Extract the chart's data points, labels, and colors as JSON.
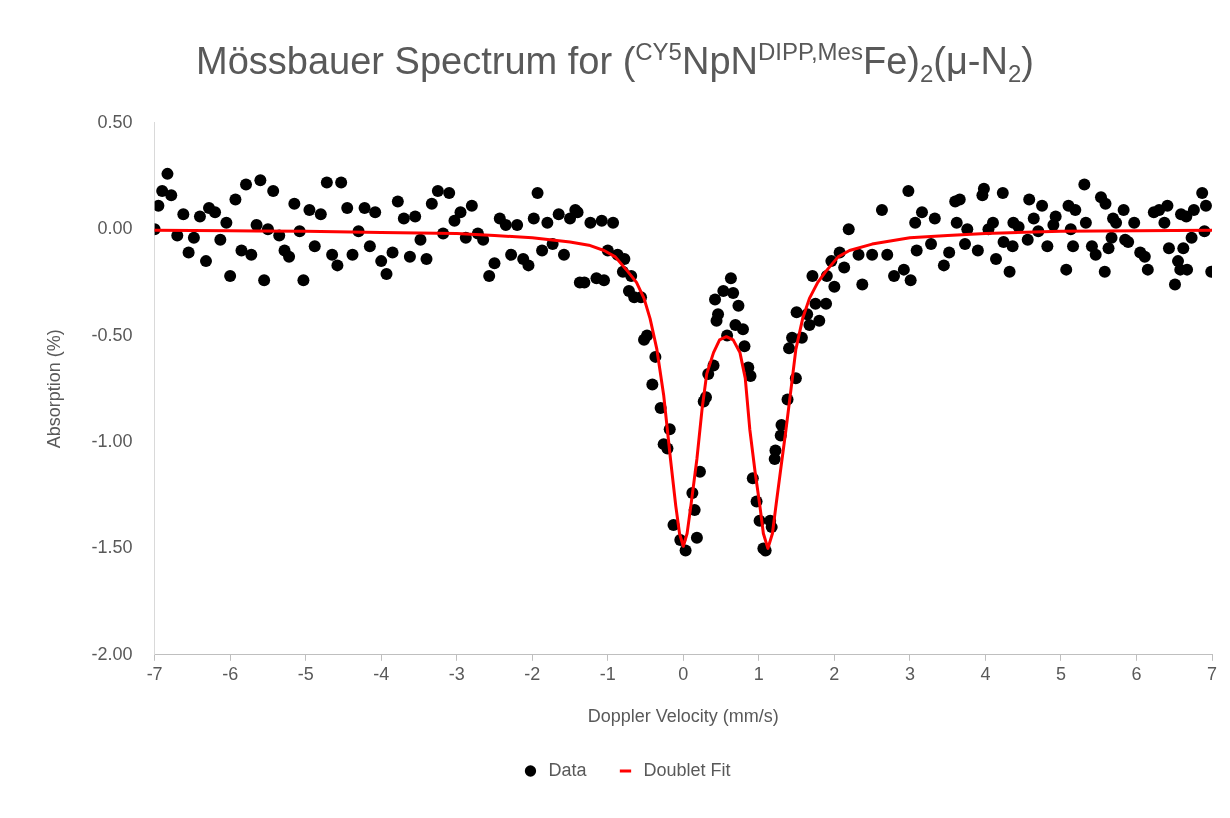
{
  "chart_data": {
    "type": "scatter",
    "title": "Mössbauer Spectrum for ($^{CY5}$NpN$^{DIPP,Mes}$Fe)$_{2}$(μ-N$_{2}$)",
    "xlabel": "Doppler Velocity (mm/s)",
    "ylabel": "Absorption (%)",
    "xlim": [
      -7,
      7
    ],
    "xticks": [
      -7,
      -6,
      -5,
      -4,
      -3,
      -2,
      -1,
      0,
      1,
      2,
      3,
      4,
      5,
      6,
      7
    ],
    "ylim": [
      -2,
      0.5
    ],
    "yticks": [
      {
        "value": -2,
        "label": "-2.00"
      },
      {
        "value": -1.5,
        "label": "-1.50"
      },
      {
        "value": -1,
        "label": "-1.00"
      },
      {
        "value": -0.5,
        "label": "-0.50"
      },
      {
        "value": 0,
        "label": "0.00"
      },
      {
        "value": 0.5,
        "label": "0.50"
      }
    ],
    "grid": false,
    "legend": "bottom",
    "marker": "circle",
    "series": [
      {
        "name": "Data",
        "color": "#000000",
        "x": [
          -7.0,
          -6.95,
          -6.9,
          -6.83,
          -6.78,
          -6.7,
          -6.62,
          -6.55,
          -6.48,
          -6.4,
          -6.32,
          -6.28,
          -6.2,
          -6.13,
          -6.05,
          -6.0,
          -5.93,
          -5.85,
          -5.79,
          -5.72,
          -5.65,
          -5.6,
          -5.55,
          -5.5,
          -5.43,
          -5.35,
          -5.28,
          -5.22,
          -5.15,
          -5.08,
          -5.03,
          -4.95,
          -4.88,
          -4.8,
          -4.72,
          -4.65,
          -4.58,
          -4.53,
          -4.45,
          -4.38,
          -4.3,
          -4.22,
          -4.15,
          -4.08,
          -4.0,
          -3.93,
          -3.85,
          -3.78,
          -3.7,
          -3.62,
          -3.55,
          -3.48,
          -3.4,
          -3.33,
          -3.25,
          -3.18,
          -3.1,
          -3.03,
          -2.95,
          -2.88,
          -2.8,
          -2.72,
          -2.65,
          -2.57,
          -2.5,
          -2.43,
          -2.35,
          -2.28,
          -2.2,
          -2.12,
          -2.05,
          -1.98,
          -1.93,
          -1.87,
          -1.8,
          -1.73,
          -1.65,
          -1.58,
          -1.5,
          -1.43,
          -1.4,
          -1.37,
          -1.31,
          -1.23,
          -1.15,
          -1.08,
          -1.05,
          -1.0,
          -0.93,
          -0.87,
          -0.8,
          -0.78,
          -0.72,
          -0.69,
          -0.65,
          -0.56,
          -0.52,
          -0.48,
          -0.41,
          -0.37,
          -0.3,
          -0.26,
          -0.21,
          -0.18,
          -0.13,
          -0.04,
          0.03,
          0.12,
          0.15,
          0.18,
          0.22,
          0.27,
          0.3,
          0.33,
          0.4,
          0.42,
          0.44,
          0.46,
          0.53,
          0.58,
          0.63,
          0.66,
          0.69,
          0.73,
          0.79,
          0.81,
          0.86,
          0.89,
          0.92,
          0.97,
          1.01,
          1.06,
          1.09,
          1.15,
          1.17,
          1.21,
          1.22,
          1.29,
          1.3,
          1.38,
          1.4,
          1.44,
          1.49,
          1.5,
          1.57,
          1.64,
          1.67,
          1.71,
          1.75,
          1.8,
          1.89,
          1.9,
          1.96,
          2.0,
          2.07,
          2.13,
          2.19,
          2.32,
          2.37,
          2.5,
          2.63,
          2.7,
          2.79,
          2.92,
          2.98,
          3.01,
          3.07,
          3.09,
          3.16,
          3.28,
          3.33,
          3.45,
          3.52,
          3.6,
          3.62,
          3.66,
          3.73,
          3.76,
          3.9,
          3.96,
          3.98,
          4.04,
          4.1,
          4.14,
          4.23,
          4.24,
          4.32,
          4.36,
          4.37,
          4.44,
          4.56,
          4.58,
          4.64,
          4.7,
          4.75,
          4.82,
          4.9,
          4.93,
          5.07,
          5.1,
          5.13,
          5.16,
          5.19,
          5.31,
          5.33,
          5.41,
          5.46,
          5.53,
          5.58,
          5.59,
          5.63,
          5.67,
          5.69,
          5.73,
          5.83,
          5.85,
          5.89,
          5.97,
          6.05,
          6.11,
          6.15,
          6.23,
          6.3,
          6.37,
          6.41,
          6.43,
          6.51,
          6.55,
          6.58,
          6.59,
          6.62,
          6.66,
          6.67,
          6.73,
          6.76,
          6.87,
          6.9,
          6.92,
          6.99
        ],
        "values": [
          0.0,
          0.11,
          0.18,
          0.26,
          0.16,
          -0.03,
          0.07,
          -0.11,
          -0.04,
          0.06,
          -0.15,
          0.1,
          0.08,
          -0.05,
          0.03,
          -0.22,
          0.14,
          -0.1,
          0.21,
          -0.12,
          0.02,
          0.23,
          -0.24,
          0.0,
          0.18,
          -0.03,
          -0.1,
          -0.13,
          0.12,
          -0.01,
          -0.24,
          0.09,
          -0.08,
          0.07,
          0.22,
          -0.12,
          -0.17,
          0.22,
          0.1,
          -0.12,
          -0.01,
          0.1,
          -0.08,
          0.08,
          -0.15,
          -0.21,
          -0.11,
          0.13,
          0.05,
          -0.13,
          0.06,
          -0.05,
          -0.14,
          0.12,
          0.18,
          -0.02,
          0.17,
          0.04,
          0.08,
          -0.04,
          0.11,
          -0.02,
          -0.05,
          -0.22,
          -0.16,
          0.05,
          0.02,
          -0.12,
          0.02,
          -0.14,
          -0.17,
          0.05,
          0.17,
          -0.1,
          0.03,
          -0.07,
          0.07,
          -0.12,
          0.05,
          0.09,
          0.08,
          -0.25,
          -0.25,
          0.03,
          -0.23,
          0.04,
          -0.24,
          -0.1,
          0.03,
          -0.12,
          -0.2,
          -0.14,
          -0.29,
          -0.22,
          -0.32,
          -0.32,
          -0.52,
          -0.5,
          -0.73,
          -0.6,
          -0.84,
          -1.01,
          -1.03,
          -0.94,
          -1.39,
          -1.46,
          -1.51,
          -1.24,
          -1.32,
          -1.45,
          -1.14,
          -0.81,
          -0.79,
          -0.68,
          -0.64,
          -0.33,
          -0.43,
          -0.4,
          -0.29,
          -0.5,
          -0.23,
          -0.3,
          -0.45,
          -0.36,
          -0.47,
          -0.55,
          -0.65,
          -0.69,
          -1.17,
          -1.28,
          -1.37,
          -1.5,
          -1.51,
          -1.37,
          -1.4,
          -1.08,
          -1.04,
          -0.97,
          -0.92,
          -0.8,
          -0.56,
          -0.51,
          -0.7,
          -0.39,
          -0.51,
          -0.4,
          -0.45,
          -0.22,
          -0.35,
          -0.43,
          -0.35,
          -0.22,
          -0.15,
          -0.27,
          -0.11,
          -0.18,
          0.0,
          -0.12,
          -0.26,
          -0.12,
          0.09,
          -0.12,
          -0.22,
          -0.19,
          0.18,
          -0.24,
          0.03,
          -0.1,
          0.08,
          -0.07,
          0.05,
          -0.17,
          -0.11,
          0.13,
          0.03,
          0.14,
          -0.07,
          0.0,
          -0.1,
          0.16,
          0.19,
          0.0,
          0.03,
          -0.14,
          0.17,
          -0.06,
          -0.2,
          -0.08,
          0.03,
          0.01,
          -0.05,
          0.14,
          0.05,
          -0.01,
          0.11,
          -0.08,
          0.02,
          0.06,
          -0.19,
          0.11,
          0.0,
          -0.08,
          0.09,
          0.21,
          0.03,
          -0.08,
          -0.12,
          0.15,
          -0.2,
          0.12,
          -0.09,
          -0.04,
          0.05,
          0.03,
          0.09,
          -0.05,
          -0.06,
          0.03,
          -0.11,
          -0.13,
          -0.19,
          0.08,
          0.09,
          0.03,
          0.11,
          -0.09,
          -0.26,
          -0.15,
          -0.19,
          0.07,
          -0.09,
          0.06,
          -0.19,
          -0.04,
          0.09,
          0.17,
          -0.01,
          0.11,
          -0.2
        ]
      },
      {
        "name": "Doublet Fit",
        "type": "line",
        "marker": "none",
        "line_style": "solid",
        "color": "#ff0000",
        "x": [
          -7,
          -6,
          -5,
          -4,
          -3,
          -2.5,
          -2,
          -1.5,
          -1.25,
          -1.05,
          -0.9,
          -0.74,
          -0.62,
          -0.52,
          -0.44,
          -0.35,
          -0.26,
          -0.17,
          -0.1,
          -0.05,
          0.0,
          0.05,
          0.1,
          0.18,
          0.25,
          0.31,
          0.4,
          0.48,
          0.57,
          0.66,
          0.75,
          0.82,
          0.88,
          0.95,
          1.01,
          1.06,
          1.12,
          1.18,
          1.23,
          1.3,
          1.36,
          1.43,
          1.49,
          1.58,
          1.67,
          1.78,
          1.89,
          2.05,
          2.2,
          2.5,
          3,
          3.5,
          4,
          5,
          6,
          7
        ],
        "values": [
          -0.005,
          -0.007,
          -0.01,
          -0.015,
          -0.02,
          -0.03,
          -0.04,
          -0.06,
          -0.075,
          -0.1,
          -0.13,
          -0.197,
          -0.25,
          -0.325,
          -0.42,
          -0.565,
          -0.78,
          -1.08,
          -1.3,
          -1.43,
          -1.49,
          -1.43,
          -1.3,
          -1.08,
          -0.84,
          -0.68,
          -0.58,
          -0.52,
          -0.505,
          -0.52,
          -0.58,
          -0.7,
          -0.94,
          -1.14,
          -1.29,
          -1.43,
          -1.5,
          -1.43,
          -1.29,
          -1.1,
          -0.94,
          -0.74,
          -0.565,
          -0.42,
          -0.325,
          -0.25,
          -0.197,
          -0.13,
          -0.1,
          -0.07,
          -0.04,
          -0.03,
          -0.02,
          -0.01,
          -0.007,
          -0.005
        ]
      }
    ]
  }
}
